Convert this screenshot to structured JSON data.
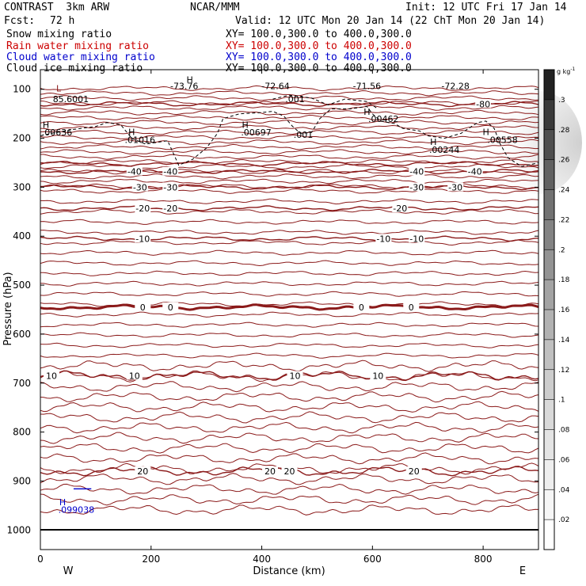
{
  "header": {
    "model": "CONTRAST  3km ARW",
    "org": "NCAR/MMM",
    "init": "Init: 12 UTC Fri 17 Jan 14",
    "fcst_label": "Fcst:",
    "fcst_value": "72 h",
    "valid": "Valid: 12 UTC Mon 20 Jan 14 (22 ChT Mon 20 Jan 14)",
    "fields": [
      {
        "name": "Snow mixing ratio",
        "xy": "XY= 100.0,300.0 to 400.0,300.0",
        "color": "#000000"
      },
      {
        "name": "Rain water mixing ratio",
        "xy": "XY= 100.0,300.0 to 400.0,300.0",
        "color": "#cc0000"
      },
      {
        "name": "Cloud water mixing ratio",
        "xy": "XY= 100.0,300.0 to 400.0,300.0",
        "color": "#0000cc"
      },
      {
        "name": "Cloud ice mixing ratio",
        "xy": "XY= 100.0,300.0 to 400.0,300.0",
        "color": "#000000"
      }
    ]
  },
  "chart_data": {
    "type": "contour-cross-section",
    "xlabel": "Distance (km)",
    "ylabel": "Pressure (hPa)",
    "xlim": [
      0,
      900
    ],
    "ylim": [
      1040,
      60
    ],
    "x_ticks": [
      0,
      200,
      400,
      600,
      800
    ],
    "y_ticks": [
      100,
      200,
      300,
      400,
      500,
      600,
      700,
      800,
      900,
      1000
    ],
    "x_end_labels": {
      "left": "W",
      "right": "E"
    },
    "colorbar": {
      "units": "g kg",
      "units_exp": "-1",
      "ticks": [
        ".3",
        ".28",
        ".26",
        ".24",
        ".22",
        ".2",
        ".18",
        ".16",
        ".14",
        ".12",
        ".1",
        ".08",
        ".06",
        ".04",
        ".02"
      ],
      "colors": [
        "#222222",
        "#3a3a3a",
        "#4e4e4e",
        "#616161",
        "#727272",
        "#838383",
        "#939393",
        "#a3a3a3",
        "#b2b2b2",
        "#c0c0c0",
        "#cdcdcd",
        "#d9d9d9",
        "#e4e4e4",
        "#eeeeee",
        "#f6f6f6",
        "#ffffff"
      ]
    },
    "temperature_color": "#8b1a1a",
    "cloud_ice_color": "#000000",
    "cloud_water_color": "#0000cc",
    "temperature_contours": [
      {
        "level": -80,
        "p": 130,
        "labels": [
          {
            "x": 800,
            "text": "-80"
          }
        ]
      },
      {
        "level": -50,
        "p": 252,
        "labels": []
      },
      {
        "level": -40,
        "p": 268,
        "labels": [
          {
            "x": 170,
            "text": "-40"
          },
          {
            "x": 235,
            "text": "-40"
          },
          {
            "x": 680,
            "text": "-40"
          },
          {
            "x": 785,
            "text": "-40"
          }
        ]
      },
      {
        "level": -30,
        "p": 300,
        "labels": [
          {
            "x": 180,
            "text": "-30"
          },
          {
            "x": 235,
            "text": "-30"
          },
          {
            "x": 680,
            "text": "-30"
          },
          {
            "x": 750,
            "text": "-30"
          }
        ]
      },
      {
        "level": -20,
        "p": 343,
        "labels": [
          {
            "x": 185,
            "text": "-20"
          },
          {
            "x": 235,
            "text": "-20"
          },
          {
            "x": 650,
            "text": "-20"
          }
        ]
      },
      {
        "level": -10,
        "p": 405,
        "labels": [
          {
            "x": 185,
            "text": "-10"
          },
          {
            "x": 620,
            "text": "-10"
          },
          {
            "x": 680,
            "text": "-10"
          }
        ]
      },
      {
        "level": 0,
        "p": 545,
        "labels": [
          {
            "x": 185,
            "text": "0"
          },
          {
            "x": 235,
            "text": "0"
          },
          {
            "x": 580,
            "text": "0"
          },
          {
            "x": 670,
            "text": "0"
          }
        ]
      },
      {
        "level": 10,
        "p": 685,
        "labels": [
          {
            "x": 20,
            "text": "10"
          },
          {
            "x": 170,
            "text": "10"
          },
          {
            "x": 460,
            "text": "10"
          },
          {
            "x": 610,
            "text": "10"
          }
        ]
      },
      {
        "level": 20,
        "p": 880,
        "labels": [
          {
            "x": 185,
            "text": "20"
          },
          {
            "x": 415,
            "text": "20"
          },
          {
            "x": 450,
            "text": "20"
          },
          {
            "x": 675,
            "text": "20"
          }
        ]
      }
    ],
    "annotations": [
      {
        "x": 260,
        "p": 93,
        "text": "-73.76",
        "kind": "value"
      },
      {
        "x": 425,
        "p": 93,
        "text": "-72.64",
        "kind": "value"
      },
      {
        "x": 590,
        "p": 93,
        "text": "-71.56",
        "kind": "value"
      },
      {
        "x": 750,
        "p": 93,
        "text": "-72.28",
        "kind": "value"
      },
      {
        "x": 55,
        "p": 120,
        "text": "85.6001",
        "kind": "value"
      },
      {
        "x": 460,
        "p": 120,
        "text": ".001",
        "kind": "value"
      },
      {
        "x": 620,
        "p": 160,
        "text": ".00462",
        "kind": "value"
      },
      {
        "x": 30,
        "p": 188,
        "text": ".00636",
        "kind": "value"
      },
      {
        "x": 180,
        "p": 203,
        "text": ".01016",
        "kind": "value"
      },
      {
        "x": 390,
        "p": 188,
        "text": ".00697",
        "kind": "value"
      },
      {
        "x": 475,
        "p": 193,
        "text": ".001",
        "kind": "value"
      },
      {
        "x": 730,
        "p": 223,
        "text": ".00244",
        "kind": "value"
      },
      {
        "x": 835,
        "p": 203,
        "text": ".00558",
        "kind": "value"
      },
      {
        "x": 65,
        "p": 958,
        "text": ".099038",
        "kind": "cloud-water"
      }
    ],
    "highs": [
      {
        "x": 270,
        "p": 80
      },
      {
        "x": 10,
        "p": 172
      },
      {
        "x": 165,
        "p": 187
      },
      {
        "x": 370,
        "p": 172
      },
      {
        "x": 590,
        "p": 146
      },
      {
        "x": 710,
        "p": 207
      },
      {
        "x": 805,
        "p": 187
      },
      {
        "x": 40,
        "p": 943,
        "kind": "cloud-water"
      }
    ],
    "lows": [
      {
        "x": 33,
        "p": 98
      }
    ]
  }
}
